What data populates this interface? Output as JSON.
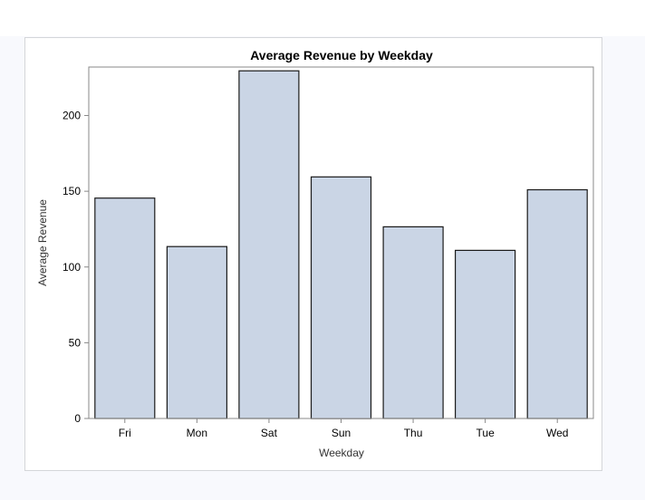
{
  "chart_data": {
    "type": "bar",
    "title": "Average Revenue by Weekday",
    "xlabel": "Weekday",
    "ylabel": "Average Revenue",
    "categories": [
      "Fri",
      "Mon",
      "Sat",
      "Sun",
      "Thu",
      "Tue",
      "Wed"
    ],
    "values": [
      145.5,
      113.5,
      229.5,
      159.5,
      126.5,
      111,
      151
    ],
    "ylim": [
      0,
      232
    ],
    "yticks": [
      "0",
      "50",
      "100",
      "150",
      "200"
    ],
    "grid": false,
    "legend": "none"
  },
  "colors": {
    "bar_fill": "#cad5e5",
    "bar_stroke": "#1a1a1a",
    "axis": "#888888",
    "frame_border": "#d4d6d9",
    "backdrop": "#f8f9fd"
  }
}
